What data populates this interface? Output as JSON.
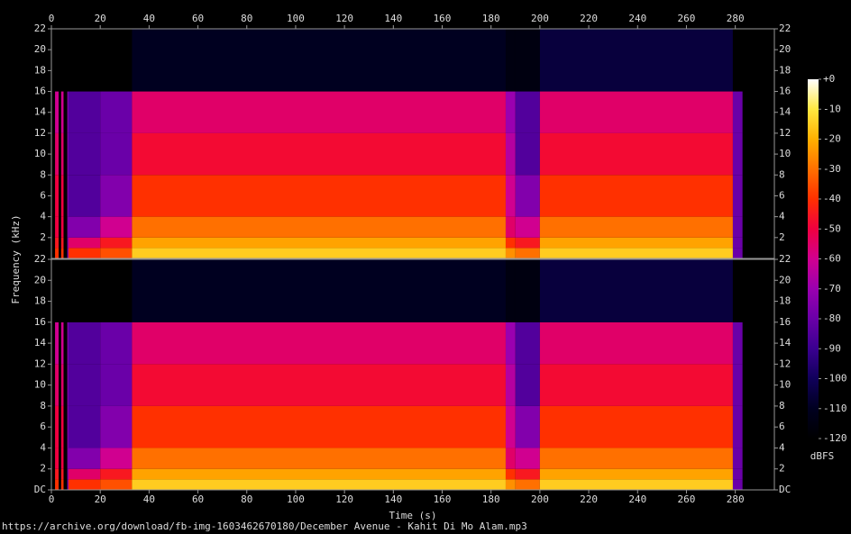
{
  "x_label": "Time (s)",
  "y_label": "Frequency (kHz)",
  "source": "https://archive.org/download/fb-img-1603462670180/December Avenue - Kahit Di Mo Alam.mp3",
  "colorbar": {
    "label": "dBFS",
    "lim": [
      -120,
      0
    ],
    "ticks": [
      {
        "value": 0,
        "label": "+0"
      },
      -10,
      -20,
      -30,
      -40,
      -50,
      -60,
      -70,
      -80,
      -90,
      -100,
      -110,
      -120
    ],
    "colors": [
      "#000000",
      "#000020",
      "#10005a",
      "#3a0090",
      "#6a00a8",
      "#9a00b0",
      "#d00090",
      "#f00040",
      "#ff3000",
      "#ff7000",
      "#ffb000",
      "#ffe840",
      "#ffffff"
    ]
  },
  "chart_data": [
    {
      "type": "heatmap",
      "xaxis_side": "top",
      "x_edges": [
        0,
        1.5,
        3,
        4,
        5,
        6.5,
        7,
        20,
        33,
        186,
        190,
        200,
        279,
        283,
        296
      ],
      "y_edges": [
        0,
        1,
        2,
        4,
        8,
        12,
        16,
        22
      ],
      "z": [
        [
          -120,
          -40,
          -120,
          -40,
          -120,
          -75,
          -40,
          -35,
          -15,
          -25,
          -30,
          -15,
          -80,
          -120
        ],
        [
          -120,
          -45,
          -120,
          -45,
          -120,
          -75,
          -55,
          -45,
          -22,
          -40,
          -45,
          -22,
          -80,
          -120
        ],
        [
          -120,
          -50,
          -120,
          -50,
          -120,
          -75,
          -75,
          -60,
          -30,
          -55,
          -60,
          -30,
          -80,
          -120
        ],
        [
          -120,
          -50,
          -120,
          -50,
          -120,
          -75,
          -85,
          -75,
          -40,
          -60,
          -75,
          -40,
          -80,
          -120
        ],
        [
          -120,
          -55,
          -120,
          -55,
          -120,
          -75,
          -85,
          -80,
          -48,
          -65,
          -85,
          -48,
          -80,
          -120
        ],
        [
          -120,
          -60,
          -120,
          -60,
          -120,
          -75,
          -85,
          -80,
          -55,
          -70,
          -85,
          -55,
          -80,
          -120
        ],
        [
          -120,
          -120,
          -120,
          -120,
          -120,
          -120,
          -120,
          -120,
          -110,
          -115,
          -115,
          -105,
          -120,
          -120
        ]
      ],
      "xlim": [
        0,
        296
      ],
      "xticks": [
        0,
        20,
        40,
        60,
        80,
        100,
        120,
        140,
        160,
        180,
        200,
        220,
        240,
        260,
        280
      ],
      "ylim": [
        0,
        22
      ],
      "yticks": [
        2,
        4,
        6,
        8,
        10,
        12,
        14,
        16,
        18,
        20,
        22
      ]
    },
    {
      "type": "heatmap",
      "xaxis_side": "bottom",
      "x_edges": [
        0,
        1.5,
        3,
        4,
        5,
        6.5,
        7,
        20,
        33,
        186,
        190,
        200,
        279,
        283,
        296
      ],
      "y_edges": [
        0,
        1,
        2,
        4,
        8,
        12,
        16,
        22
      ],
      "z": [
        [
          -120,
          -40,
          -120,
          -40,
          -120,
          -75,
          -40,
          -35,
          -15,
          -25,
          -30,
          -15,
          -80,
          -120
        ],
        [
          -120,
          -45,
          -120,
          -45,
          -120,
          -75,
          -55,
          -45,
          -22,
          -40,
          -45,
          -22,
          -80,
          -120
        ],
        [
          -120,
          -50,
          -120,
          -50,
          -120,
          -75,
          -75,
          -60,
          -30,
          -55,
          -60,
          -30,
          -80,
          -120
        ],
        [
          -120,
          -50,
          -120,
          -50,
          -120,
          -75,
          -85,
          -75,
          -40,
          -60,
          -75,
          -40,
          -80,
          -120
        ],
        [
          -120,
          -55,
          -120,
          -55,
          -120,
          -75,
          -85,
          -80,
          -48,
          -65,
          -85,
          -48,
          -80,
          -120
        ],
        [
          -120,
          -60,
          -120,
          -60,
          -120,
          -75,
          -85,
          -80,
          -55,
          -70,
          -85,
          -55,
          -80,
          -120
        ],
        [
          -120,
          -120,
          -120,
          -120,
          -120,
          -120,
          -120,
          -120,
          -110,
          -115,
          -115,
          -105,
          -120,
          -120
        ]
      ],
      "xlim": [
        0,
        296
      ],
      "xticks": [
        0,
        20,
        40,
        60,
        80,
        100,
        120,
        140,
        160,
        180,
        200,
        220,
        240,
        260,
        280
      ],
      "ylim": [
        0,
        22
      ],
      "yticks": [
        {
          "value": 0,
          "label": "DC"
        },
        2,
        4,
        6,
        8,
        10,
        12,
        14,
        16,
        18,
        20,
        22
      ]
    }
  ]
}
